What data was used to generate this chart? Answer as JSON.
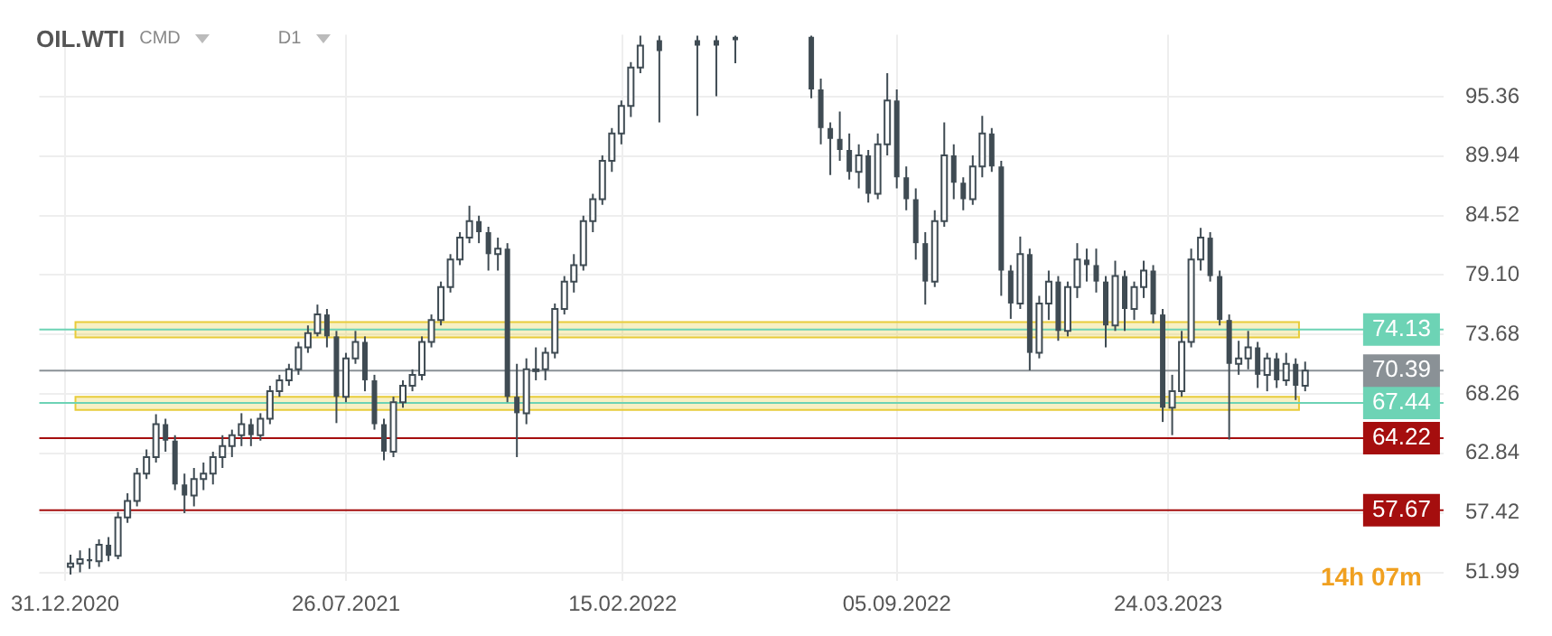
{
  "chart_data": {
    "type": "candlestick",
    "title": "OIL.WTI",
    "annotations": [
      "CMD",
      "D1",
      "14h 07m"
    ],
    "color": "#3f4b53",
    "x": [
      "2021-01-04",
      "2021-01-11",
      "2021-01-18",
      "2021-01-25",
      "2021-02-01",
      "2021-02-08",
      "2021-02-15",
      "2021-02-22",
      "2021-03-01",
      "2021-03-08",
      "2021-03-15",
      "2021-03-22",
      "2021-03-29",
      "2021-04-05",
      "2021-04-12",
      "2021-04-19",
      "2021-04-26",
      "2021-05-03",
      "2021-05-10",
      "2021-05-17",
      "2021-05-24",
      "2021-05-31",
      "2021-06-07",
      "2021-06-14",
      "2021-06-21",
      "2021-06-28",
      "2021-07-05",
      "2021-07-12",
      "2021-07-19",
      "2021-07-26",
      "2021-08-02",
      "2021-08-09",
      "2021-08-16",
      "2021-08-23",
      "2021-08-30",
      "2021-09-06",
      "2021-09-13",
      "2021-09-20",
      "2021-09-27",
      "2021-10-04",
      "2021-10-11",
      "2021-10-18",
      "2021-10-25",
      "2021-11-01",
      "2021-11-08",
      "2021-11-15",
      "2021-11-22",
      "2021-11-29",
      "2021-12-06",
      "2021-12-13",
      "2021-12-20",
      "2021-12-27",
      "2022-01-03",
      "2022-01-10",
      "2022-01-17",
      "2022-01-24",
      "2022-01-31",
      "2022-02-07",
      "2022-02-14",
      "2022-02-21",
      "2022-02-28",
      "2022-03-14",
      "2022-04-11",
      "2022-04-25",
      "2022-05-09",
      "2022-07-04",
      "2022-07-11",
      "2022-07-18",
      "2022-07-25",
      "2022-08-01",
      "2022-08-08",
      "2022-08-15",
      "2022-08-22",
      "2022-08-29",
      "2022-09-05",
      "2022-09-12",
      "2022-09-19",
      "2022-09-26",
      "2022-10-03",
      "2022-10-10",
      "2022-10-17",
      "2022-10-24",
      "2022-10-31",
      "2022-11-07",
      "2022-11-14",
      "2022-11-21",
      "2022-11-28",
      "2022-12-05",
      "2022-12-12",
      "2022-12-19",
      "2022-12-26",
      "2023-01-02",
      "2023-01-09",
      "2023-01-16",
      "2023-01-23",
      "2023-01-30",
      "2023-02-06",
      "2023-02-13",
      "2023-02-20",
      "2023-02-27",
      "2023-03-06",
      "2023-03-13",
      "2023-03-20",
      "2023-03-27",
      "2023-04-03",
      "2023-04-10",
      "2023-04-17",
      "2023-04-24",
      "2023-05-01",
      "2023-05-08",
      "2023-05-15",
      "2023-05-22",
      "2023-05-29",
      "2023-06-05",
      "2023-06-12",
      "2023-06-19",
      "2023-06-26",
      "2023-07-03"
    ],
    "ohlc": [
      [
        52.5,
        53.6,
        51.8,
        52.8
      ],
      [
        52.8,
        54,
        52,
        53.2
      ],
      [
        53.2,
        54.2,
        52.3,
        53
      ],
      [
        53,
        55,
        52.5,
        54.5
      ],
      [
        54.5,
        55.2,
        53,
        53.5
      ],
      [
        53.5,
        57.5,
        53.2,
        57
      ],
      [
        57,
        59.2,
        56.5,
        58.5
      ],
      [
        58.5,
        61.5,
        58,
        61
      ],
      [
        61,
        63.2,
        60.5,
        62.5
      ],
      [
        62.5,
        66.4,
        62,
        65.5
      ],
      [
        65.5,
        66,
        63,
        64
      ],
      [
        64,
        64.5,
        59.5,
        60
      ],
      [
        60,
        61,
        57.4,
        59
      ],
      [
        59,
        61.5,
        58,
        60.5
      ],
      [
        60.5,
        62,
        59.5,
        61
      ],
      [
        61,
        63,
        60,
        62.5
      ],
      [
        62.5,
        64.5,
        61.5,
        63.5
      ],
      [
        63.5,
        65,
        62.5,
        64.5
      ],
      [
        64.5,
        66.5,
        63.5,
        65.5
      ],
      [
        65.5,
        66,
        63.5,
        64.5
      ],
      [
        64.5,
        66.5,
        64,
        66
      ],
      [
        66,
        69,
        65.5,
        68.5
      ],
      [
        68.5,
        70,
        68,
        69.5
      ],
      [
        69.5,
        71,
        69,
        70.5
      ],
      [
        70.5,
        73,
        70,
        72.5
      ],
      [
        72.5,
        74.5,
        72,
        73.8
      ],
      [
        73.8,
        76.4,
        73.5,
        75.5
      ],
      [
        75.5,
        76,
        72.5,
        73.5
      ],
      [
        73.5,
        74,
        65.6,
        68
      ],
      [
        68,
        72,
        67.5,
        71.5
      ],
      [
        71.5,
        74,
        71,
        73
      ],
      [
        73,
        73.5,
        68.5,
        69.5
      ],
      [
        69.5,
        70,
        65,
        65.5
      ],
      [
        65.5,
        66,
        62.2,
        63
      ],
      [
        63,
        68,
        62.5,
        67.5
      ],
      [
        67.5,
        69.5,
        67,
        69
      ],
      [
        69,
        70.5,
        68.5,
        70
      ],
      [
        70,
        73.5,
        69.5,
        73
      ],
      [
        73,
        75.5,
        72.5,
        75
      ],
      [
        75,
        78.5,
        74.5,
        78
      ],
      [
        78,
        81,
        77.5,
        80.5
      ],
      [
        80.5,
        83,
        80,
        82.5
      ],
      [
        82.5,
        85.4,
        82,
        84
      ],
      [
        84,
        84.5,
        82,
        83
      ],
      [
        83,
        83.5,
        79.5,
        81
      ],
      [
        81,
        82.5,
        79.5,
        81.5
      ],
      [
        81.5,
        82,
        67.5,
        68
      ],
      [
        68,
        71,
        62.5,
        66.5
      ],
      [
        66.5,
        71.5,
        65.5,
        70.5
      ],
      [
        70.5,
        72.5,
        69.5,
        70.5
      ],
      [
        70.5,
        72.5,
        69.5,
        72
      ],
      [
        72,
        76.5,
        71.5,
        76
      ],
      [
        76,
        79,
        75.5,
        78.5
      ],
      [
        78.5,
        81,
        77.5,
        80
      ],
      [
        80,
        84.5,
        79.5,
        84
      ],
      [
        84,
        86.5,
        83,
        86
      ],
      [
        86,
        90,
        85.5,
        89.5
      ],
      [
        89.5,
        92.5,
        88.5,
        92
      ],
      [
        92,
        95,
        91,
        94.5
      ],
      [
        94.5,
        98.5,
        93.5,
        98
      ],
      [
        98,
        100.9,
        97.5,
        100
      ],
      [
        100.5,
        100.9,
        93,
        99.5
      ],
      [
        100.5,
        100.9,
        93.6,
        100
      ],
      [
        100.5,
        100.9,
        95.4,
        100
      ],
      [
        100.8,
        100.9,
        98.4,
        100.5
      ],
      [
        100.8,
        100.9,
        95.2,
        96
      ],
      [
        96,
        97,
        91,
        92.5
      ],
      [
        92.5,
        93,
        88.2,
        91.5
      ],
      [
        91.5,
        94,
        89.5,
        90.5
      ],
      [
        90.5,
        92,
        87.8,
        88.5
      ],
      [
        88.5,
        91,
        87,
        90
      ],
      [
        90,
        90.5,
        85.7,
        86.5
      ],
      [
        86.5,
        92,
        86,
        91
      ],
      [
        91,
        97.5,
        90,
        95
      ],
      [
        95,
        96,
        87,
        88
      ],
      [
        88,
        89,
        85,
        86
      ],
      [
        86,
        87,
        80.5,
        82
      ],
      [
        82,
        83,
        76.4,
        78.5
      ],
      [
        78.5,
        85,
        78,
        84
      ],
      [
        84,
        93,
        83.5,
        90
      ],
      [
        90,
        91,
        86,
        87.5
      ],
      [
        87.5,
        88,
        85,
        86
      ],
      [
        86,
        90,
        85.5,
        89
      ],
      [
        89,
        93.6,
        88,
        92
      ],
      [
        92,
        92.5,
        88.5,
        89
      ],
      [
        89,
        89.5,
        77.2,
        79.5
      ],
      [
        79.5,
        80,
        75.1,
        76.5
      ],
      [
        76.5,
        82.6,
        76,
        81
      ],
      [
        81,
        81.5,
        70.4,
        72
      ],
      [
        72,
        77.2,
        71.5,
        76.5
      ],
      [
        76.5,
        79.5,
        75,
        78.5
      ],
      [
        78.5,
        79,
        73.1,
        74
      ],
      [
        74,
        78.5,
        73.5,
        78
      ],
      [
        78,
        82,
        77,
        80.5
      ],
      [
        80.5,
        81.5,
        78.5,
        80
      ],
      [
        80,
        81.5,
        77.5,
        78.5
      ],
      [
        78.5,
        79,
        72.5,
        74.5
      ],
      [
        74.5,
        80.4,
        74,
        79
      ],
      [
        79,
        79.5,
        74,
        76
      ],
      [
        76,
        78.5,
        75,
        78
      ],
      [
        78,
        80.4,
        77,
        79.5
      ],
      [
        79.5,
        80,
        74.7,
        75.5
      ],
      [
        75.5,
        76,
        65.7,
        67
      ],
      [
        67,
        70,
        64.5,
        68.5
      ],
      [
        68.5,
        74,
        68,
        73
      ],
      [
        73,
        81.5,
        72.5,
        80.5
      ],
      [
        80.5,
        83.4,
        79.5,
        82.5
      ],
      [
        82.5,
        83,
        78.5,
        79
      ],
      [
        79,
        79.5,
        74.5,
        75
      ],
      [
        75,
        75.5,
        64.1,
        71
      ],
      [
        71,
        73.1,
        70,
        71.5
      ],
      [
        71.5,
        74,
        70.5,
        72.5
      ],
      [
        72.5,
        73,
        68.8,
        70
      ],
      [
        70,
        72,
        68.5,
        71.5
      ],
      [
        71.5,
        72,
        68.8,
        69.5
      ],
      [
        69.5,
        72,
        69,
        71
      ],
      [
        71,
        71.5,
        67.7,
        69
      ],
      [
        69,
        71.2,
        68.5,
        70.39
      ]
    ],
    "xlim": [
      "2020-12-12",
      "2023-10-13"
    ],
    "xticks": [
      {
        "value": "2020-12-31",
        "label": "31.12.2020"
      },
      {
        "value": "2021-07-26",
        "label": "26.07.2021"
      },
      {
        "value": "2022-02-15",
        "label": "15.02.2022"
      },
      {
        "value": "2022-09-05",
        "label": "05.09.2022"
      },
      {
        "value": "2023-03-24",
        "label": "24.03.2023"
      }
    ],
    "ylim": [
      51.2,
      101
    ],
    "yticks": [
      51.99,
      57.42,
      62.84,
      68.26,
      73.68,
      {
        "value": 79.1,
        "label": "79.10"
      },
      84.52,
      89.94,
      95.36
    ],
    "grid": true,
    "legend": false,
    "ref_lines": [
      {
        "axis": "y",
        "value": 74.13,
        "label": "74.13",
        "color": "#6dd3b5"
      },
      {
        "axis": "y",
        "value": 67.44,
        "label": "67.44",
        "color": "#6dd3b5"
      },
      {
        "axis": "y",
        "value": 64.22,
        "label": "64.22",
        "color": "#a50e0e"
      },
      {
        "axis": "y",
        "value": 57.67,
        "label": "57.67",
        "color": "#a50e0e"
      },
      {
        "axis": "y",
        "value": 70.39,
        "label": "70.39",
        "color": "#8a9196"
      }
    ],
    "bands": [
      {
        "axis": "y",
        "from": 73.4,
        "to": 74.8,
        "color": "#e8cc3a"
      },
      {
        "axis": "y",
        "from": 66.8,
        "to": 68.0,
        "color": "#e8cc3a"
      }
    ]
  }
}
